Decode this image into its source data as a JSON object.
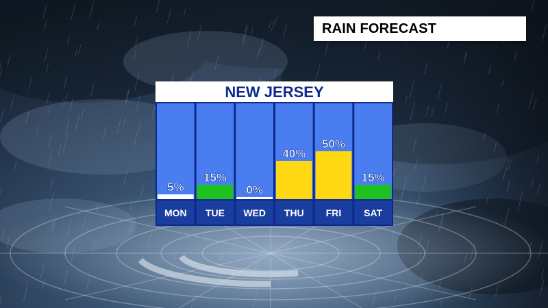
{
  "header": {
    "title": "RAIN FORECAST"
  },
  "colors": {
    "column_bg": "#4a7df0",
    "label_bg": "#1a3da0",
    "panel_border": "#0d2a8a",
    "low": "#ffffff",
    "mid": "#1ec21e",
    "high": "#ffd814"
  },
  "chart_data": {
    "type": "bar",
    "title": "NEW JERSEY",
    "categories": [
      "MON",
      "TUE",
      "WED",
      "THU",
      "FRI",
      "SAT"
    ],
    "values": [
      5,
      15,
      0,
      40,
      50,
      15
    ],
    "value_labels": [
      "5%",
      "15%",
      "0%",
      "40%",
      "50%",
      "15%"
    ],
    "bar_colors": [
      "#ffffff",
      "#1ec21e",
      "#ffffff",
      "#ffd814",
      "#ffd814",
      "#1ec21e"
    ],
    "ylim": [
      0,
      100
    ],
    "xlabel": "",
    "ylabel": "",
    "grid": false
  }
}
